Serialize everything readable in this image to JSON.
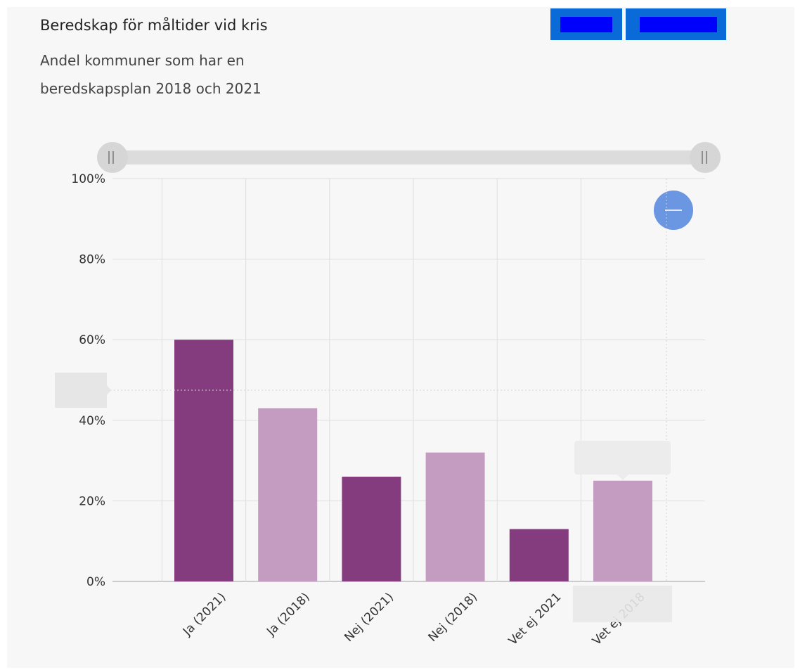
{
  "header": {
    "title": "Beredskap för måltider vid kris",
    "subtitle": "Andel kommuner som har en beredskapsplan 2018 och 2021"
  },
  "controls": {
    "zoom_out_icon": "minus-icon"
  },
  "colors": {
    "dark_series": "#843c7f",
    "light_series": "#c59cc1",
    "accent": "#6a96e2",
    "button": "#0a6ad8"
  },
  "chart_data": {
    "type": "bar",
    "categories": [
      "Ja (2021)",
      "Ja (2018)",
      "Nej (2021)",
      "Nej (2018)",
      "Vet ej 2021",
      "Vet ej 2018"
    ],
    "values": [
      60,
      43,
      26,
      32,
      13,
      25
    ],
    "bar_colors": [
      "#843c7f",
      "#c59cc1",
      "#843c7f",
      "#c59cc1",
      "#843c7f",
      "#c59cc1"
    ],
    "yticks": [
      "0%",
      "20%",
      "40%",
      "60%",
      "80%",
      "100%"
    ],
    "ylim": [
      0,
      100
    ],
    "xlabel": "",
    "ylabel": "",
    "grid": true
  }
}
